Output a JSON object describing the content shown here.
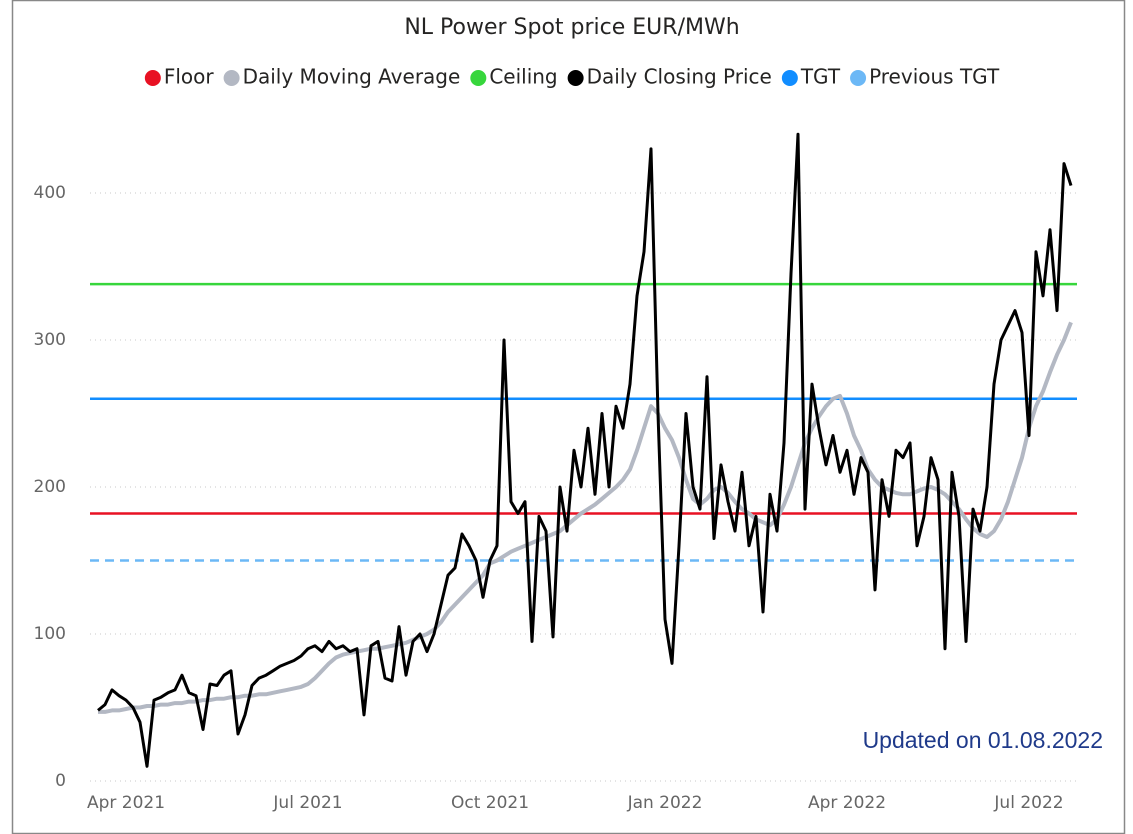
{
  "chart_data": {
    "type": "line",
    "title": "NL Power Spot price EUR/MWh",
    "annotation": "Updated on 01.08.2022",
    "categories": [
      null,
      null,
      null,
      null,
      "Apr 2021",
      null,
      null,
      null,
      null,
      null,
      null,
      null,
      null,
      null,
      null,
      null,
      null,
      null,
      null,
      null,
      null,
      null,
      null,
      null,
      null,
      null,
      null,
      null,
      null,
      null,
      "Jul 2021",
      null,
      null,
      null,
      null,
      null,
      null,
      null,
      null,
      null,
      null,
      null,
      null,
      null,
      null,
      null,
      null,
      null,
      null,
      null,
      null,
      null,
      null,
      null,
      null,
      null,
      "Oct 2021",
      null,
      null,
      null,
      null,
      null,
      null,
      null,
      null,
      null,
      null,
      null,
      null,
      null,
      null,
      null,
      null,
      null,
      null,
      null,
      null,
      null,
      null,
      null,
      null,
      "Jan 2022",
      null,
      null,
      null,
      null,
      null,
      null,
      null,
      null,
      null,
      null,
      null,
      null,
      null,
      null,
      null,
      null,
      null,
      null,
      null,
      null,
      null,
      null,
      null,
      null,
      null,
      "Apr 2022",
      null,
      null,
      null,
      null,
      null,
      null,
      null,
      null,
      null,
      null,
      null,
      null,
      null,
      null,
      null,
      null,
      null,
      null,
      null,
      null,
      null,
      null,
      null,
      null,
      null,
      "Jul 2022",
      null,
      null,
      null,
      null,
      null,
      null
    ],
    "series": [
      {
        "name": "Floor",
        "color": "#e81123",
        "value": 182
      },
      {
        "name": "Daily Moving Average",
        "color": "#b3b8c3",
        "values": [
          47,
          47,
          48,
          48,
          49,
          50,
          50,
          51,
          51,
          52,
          52,
          53,
          53,
          54,
          54,
          55,
          55,
          56,
          56,
          57,
          57,
          58,
          58,
          59,
          59,
          60,
          61,
          62,
          63,
          64,
          66,
          70,
          75,
          80,
          84,
          86,
          87,
          88,
          89,
          90,
          90,
          91,
          92,
          93,
          94,
          96,
          98,
          100,
          103,
          108,
          115,
          120,
          125,
          130,
          135,
          140,
          148,
          150,
          153,
          156,
          158,
          160,
          162,
          164,
          166,
          168,
          170,
          174,
          178,
          182,
          185,
          188,
          192,
          196,
          200,
          205,
          212,
          225,
          240,
          255,
          250,
          240,
          232,
          220,
          205,
          192,
          188,
          192,
          198,
          200,
          196,
          190,
          185,
          182,
          178,
          176,
          174,
          178,
          188,
          200,
          215,
          230,
          240,
          248,
          255,
          260,
          262,
          250,
          235,
          225,
          212,
          205,
          200,
          198,
          196,
          195,
          195,
          197,
          199,
          200,
          198,
          195,
          190,
          185,
          178,
          172,
          168,
          166,
          170,
          178,
          190,
          205,
          220,
          240,
          255,
          265,
          278,
          290,
          300,
          312
        ]
      },
      {
        "name": "Ceiling",
        "color": "#37d63c",
        "value": 338
      },
      {
        "name": "Daily Closing Price",
        "color": "#000000",
        "values": [
          48,
          52,
          62,
          58,
          55,
          50,
          40,
          10,
          55,
          57,
          60,
          62,
          72,
          60,
          58,
          35,
          66,
          65,
          72,
          75,
          32,
          45,
          65,
          70,
          72,
          75,
          78,
          80,
          82,
          85,
          90,
          92,
          88,
          95,
          90,
          92,
          88,
          90,
          45,
          92,
          95,
          70,
          68,
          105,
          72,
          95,
          100,
          88,
          100,
          120,
          140,
          145,
          168,
          160,
          150,
          125,
          150,
          160,
          300,
          190,
          182,
          190,
          95,
          180,
          170,
          98,
          200,
          170,
          225,
          200,
          240,
          195,
          250,
          200,
          255,
          240,
          270,
          330,
          360,
          430,
          250,
          110,
          80,
          160,
          250,
          200,
          185,
          275,
          165,
          215,
          190,
          170,
          210,
          160,
          180,
          115,
          195,
          170,
          230,
          345,
          440,
          185,
          270,
          240,
          215,
          235,
          210,
          225,
          195,
          220,
          210,
          130,
          205,
          180,
          225,
          220,
          230,
          160,
          180,
          220,
          205,
          90,
          210,
          180,
          95,
          185,
          170,
          200,
          270,
          300,
          310,
          320,
          305,
          235,
          360,
          330,
          375,
          320,
          420,
          405
        ]
      },
      {
        "name": "TGT",
        "color": "#118dff",
        "value": 260
      },
      {
        "name": "Previous TGT",
        "color": "#6cb8f6",
        "value": 150,
        "dash": true
      }
    ],
    "ylim": [
      0,
      450
    ],
    "yticks": [
      0,
      100,
      200,
      300,
      400
    ],
    "grid": true
  }
}
